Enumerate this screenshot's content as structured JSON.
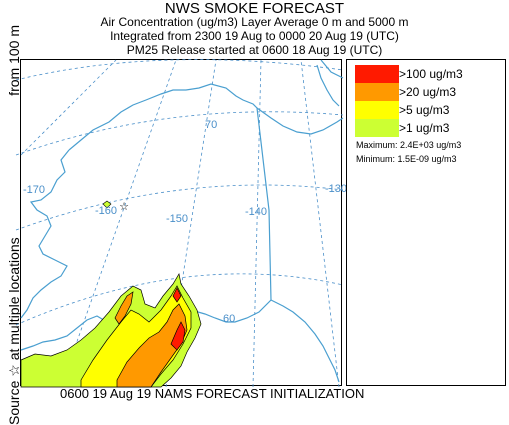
{
  "header": {
    "title": "NWS SMOKE FORECAST",
    "line1": "Air Concentration (ug/m3) Layer Average    0 m and  5000 m",
    "line2": "Integrated from 2300 19 Aug to 0000 20 Aug 19 (UTC)",
    "line3": "PM25 Release started at 0600 18 Aug 19 (UTC)"
  },
  "side_label": {
    "source_text": "Source ☆ at multiple locations",
    "height_text": "from   100 m"
  },
  "map": {
    "longitude_labels": [
      "-170",
      "-160",
      "-150",
      "-140",
      "-130"
    ],
    "latitude_labels": [
      "70",
      "60"
    ],
    "colors": {
      "graticule": "#4a8fc9",
      "coast": "#4a9fd0",
      "contour": "#000000"
    }
  },
  "legend": {
    "items": [
      {
        "label": ">100 ug/m3",
        "color": "#ff1a00"
      },
      {
        "label": ">20 ug/m3",
        "color": "#ff9900"
      },
      {
        "label": ">5 ug/m3",
        "color": "#ffff00"
      },
      {
        "label": ">1 ug/m3",
        "color": "#ccff33"
      }
    ],
    "maximum": "Maximum:  2.4E+03 ug/m3",
    "minimum": "Minimum:  1.5E-09 ug/m3"
  },
  "footer": "0600 19 Aug 19 NAMS FORECAST INITIALIZATION"
}
